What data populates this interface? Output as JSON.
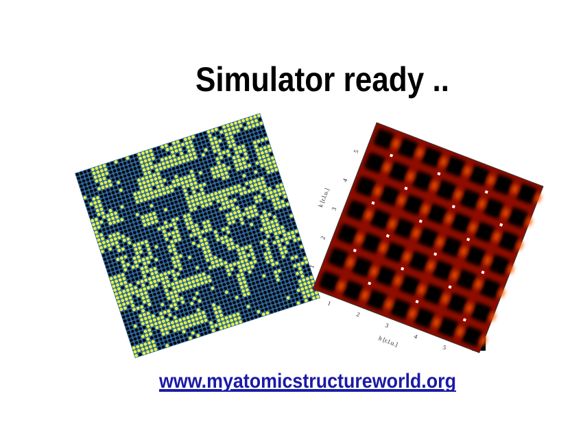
{
  "title": "Simulator ready ..",
  "link": "www.myatomicstructureworld.org",
  "heatmap": {
    "x_label": "h [r.l.u.]",
    "y_label": "k [r.l.u.]",
    "x_ticks": [
      "1",
      "2",
      "3",
      "4",
      "5"
    ],
    "y_ticks": [
      "1",
      "2",
      "3",
      "4",
      "5"
    ]
  }
}
